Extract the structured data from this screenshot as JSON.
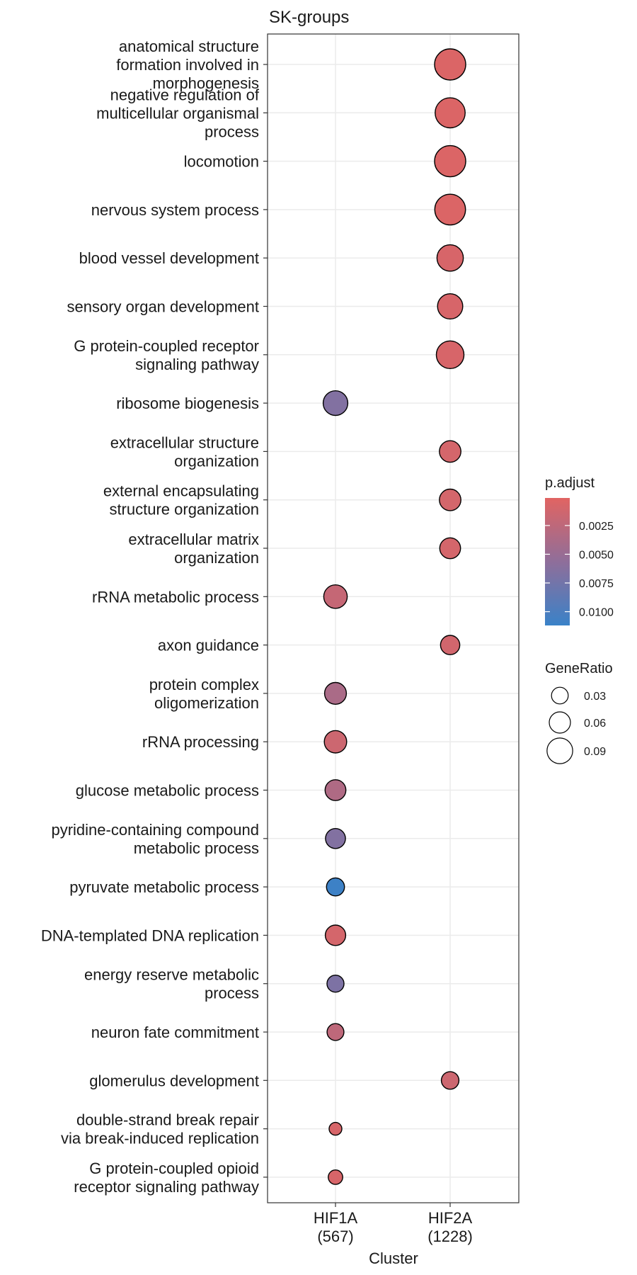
{
  "chart_data": {
    "type": "scatter",
    "title": "SK-groups",
    "xlabel": "Cluster",
    "ylabel": "",
    "clusters": [
      {
        "name": "HIF1A",
        "count": "(567)"
      },
      {
        "name": "HIF2A",
        "count": "(1228)"
      }
    ],
    "terms": [
      [
        "anatomical structure",
        "formation involved in",
        "morphogenesis"
      ],
      [
        "negative regulation of",
        "multicellular organismal",
        "process"
      ],
      [
        "locomotion"
      ],
      [
        "nervous system process"
      ],
      [
        "blood vessel development"
      ],
      [
        "sensory organ development"
      ],
      [
        "G protein-coupled receptor",
        "signaling pathway"
      ],
      [
        "ribosome biogenesis"
      ],
      [
        "extracellular structure",
        "organization"
      ],
      [
        "external encapsulating",
        "structure organization"
      ],
      [
        "extracellular matrix",
        "organization"
      ],
      [
        "rRNA metabolic process"
      ],
      [
        "axon guidance"
      ],
      [
        "protein complex",
        "oligomerization"
      ],
      [
        "rRNA processing"
      ],
      [
        "glucose metabolic process"
      ],
      [
        "pyridine-containing compound",
        "metabolic process"
      ],
      [
        "pyruvate metabolic process"
      ],
      [
        "DNA-templated DNA replication"
      ],
      [
        "energy reserve metabolic",
        "process"
      ],
      [
        "neuron fate commitment"
      ],
      [
        "glomerulus development"
      ],
      [
        "double-strand break repair",
        "via break-induced replication"
      ],
      [
        "G protein-coupled opioid",
        "receptor signaling pathway"
      ]
    ],
    "points": [
      {
        "term": 0,
        "cluster": 1,
        "gene_ratio": 0.095,
        "p_adjust": 0.0005
      },
      {
        "term": 1,
        "cluster": 1,
        "gene_ratio": 0.09,
        "p_adjust": 0.0005
      },
      {
        "term": 2,
        "cluster": 1,
        "gene_ratio": 0.095,
        "p_adjust": 0.0005
      },
      {
        "term": 3,
        "cluster": 1,
        "gene_ratio": 0.093,
        "p_adjust": 0.0005
      },
      {
        "term": 4,
        "cluster": 1,
        "gene_ratio": 0.075,
        "p_adjust": 0.0008
      },
      {
        "term": 5,
        "cluster": 1,
        "gene_ratio": 0.07,
        "p_adjust": 0.0008
      },
      {
        "term": 6,
        "cluster": 1,
        "gene_ratio": 0.08,
        "p_adjust": 0.0008
      },
      {
        "term": 7,
        "cluster": 0,
        "gene_ratio": 0.068,
        "p_adjust": 0.0065
      },
      {
        "term": 8,
        "cluster": 1,
        "gene_ratio": 0.055,
        "p_adjust": 0.001
      },
      {
        "term": 9,
        "cluster": 1,
        "gene_ratio": 0.055,
        "p_adjust": 0.001
      },
      {
        "term": 10,
        "cluster": 1,
        "gene_ratio": 0.052,
        "p_adjust": 0.001
      },
      {
        "term": 11,
        "cluster": 0,
        "gene_ratio": 0.063,
        "p_adjust": 0.002
      },
      {
        "term": 12,
        "cluster": 1,
        "gene_ratio": 0.045,
        "p_adjust": 0.0012
      },
      {
        "term": 13,
        "cluster": 0,
        "gene_ratio": 0.056,
        "p_adjust": 0.0038
      },
      {
        "term": 14,
        "cluster": 0,
        "gene_ratio": 0.058,
        "p_adjust": 0.0015
      },
      {
        "term": 15,
        "cluster": 0,
        "gene_ratio": 0.052,
        "p_adjust": 0.0035
      },
      {
        "term": 16,
        "cluster": 0,
        "gene_ratio": 0.048,
        "p_adjust": 0.0065
      },
      {
        "term": 17,
        "cluster": 0,
        "gene_ratio": 0.04,
        "p_adjust": 0.011
      },
      {
        "term": 18,
        "cluster": 0,
        "gene_ratio": 0.05,
        "p_adjust": 0.001
      },
      {
        "term": 19,
        "cluster": 0,
        "gene_ratio": 0.036,
        "p_adjust": 0.0068
      },
      {
        "term": 20,
        "cluster": 0,
        "gene_ratio": 0.035,
        "p_adjust": 0.0025
      },
      {
        "term": 21,
        "cluster": 1,
        "gene_ratio": 0.038,
        "p_adjust": 0.0015
      },
      {
        "term": 22,
        "cluster": 0,
        "gene_ratio": 0.018,
        "p_adjust": 0.0008
      },
      {
        "term": 23,
        "cluster": 0,
        "gene_ratio": 0.025,
        "p_adjust": 0.0008
      }
    ],
    "color_legend": {
      "title": "p.adjust",
      "ticks": [
        0.0025,
        0.005,
        0.0075,
        0.01
      ],
      "tick_labels": [
        "0.0025",
        "0.0050",
        "0.0075",
        "0.0100"
      ],
      "range": [
        0.0001,
        0.0112
      ],
      "low_color": "#E16462",
      "high_color": "#3A82C8",
      "reversed": true
    },
    "size_legend": {
      "title": "GeneRatio",
      "values": [
        0.03,
        0.06,
        0.09
      ],
      "labels": [
        "0.03",
        "0.06",
        "0.09"
      ]
    },
    "grid": true,
    "legend_position": "right"
  }
}
